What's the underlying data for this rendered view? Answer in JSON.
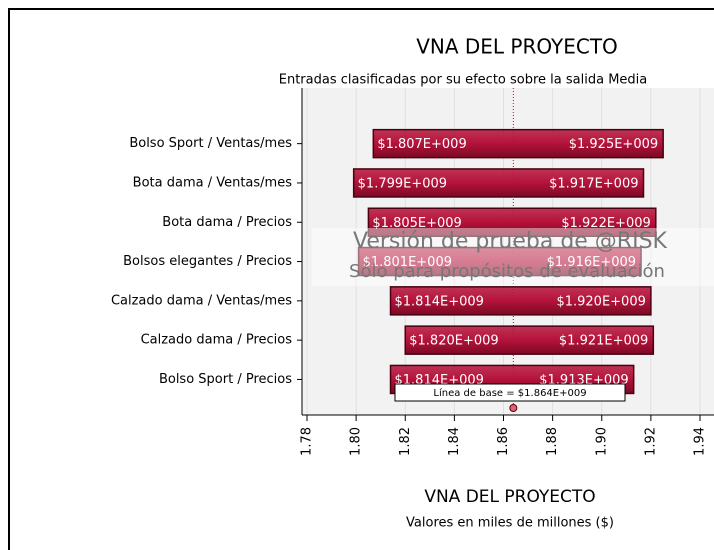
{
  "chart_data": {
    "type": "tornado",
    "title": "VNA DEL PROYECTO",
    "subtitle": "Entradas clasificadas por su efecto sobre la salida Media",
    "x_label": "VNA DEL PROYECTO",
    "x_sublabel": "Valores en miles de millones ($)",
    "categories": [
      "Bolso Sport / Ventas/mes",
      "Bota dama / Ventas/mes",
      "Bota dama / Precios",
      "Bolsos elegantes / Precios",
      "Calzado dama / Ventas/mes",
      "Calzado dama / Precios",
      "Bolso Sport / Precios"
    ],
    "low_values": [
      1.807,
      1.799,
      1.805,
      1.801,
      1.814,
      1.82,
      1.814
    ],
    "low_value_labels": [
      "$1.807E+009",
      "$1.799E+009",
      "$1.805E+009",
      "$1.801E+009",
      "$1.814E+009",
      "$1.820E+009",
      "$1.814E+009"
    ],
    "high_values": [
      1.925,
      1.917,
      1.922,
      1.916,
      1.92,
      1.921,
      1.913
    ],
    "high_value_labels": [
      "$1.925E+009",
      "$1.917E+009",
      "$1.922E+009",
      "$1.916E+009",
      "$1.920E+009",
      "$1.921E+009",
      "$1.913E+009"
    ],
    "baseline": {
      "value": 1.864,
      "label": "Línea de base = $1.864E+009"
    },
    "color": "#b5123a",
    "xlim": [
      1.78,
      1.94
    ],
    "xticks": [
      1.78,
      {
        "value": 1.8,
        "label": "1.80"
      },
      1.82,
      1.84,
      1.86,
      1.88,
      {
        "value": 1.9,
        "label": "1.90"
      },
      1.92,
      1.94
    ],
    "grid": true,
    "watermark": [
      "Versión de prueba de @RISK",
      "Sólo para propósitos de evaluación"
    ]
  }
}
